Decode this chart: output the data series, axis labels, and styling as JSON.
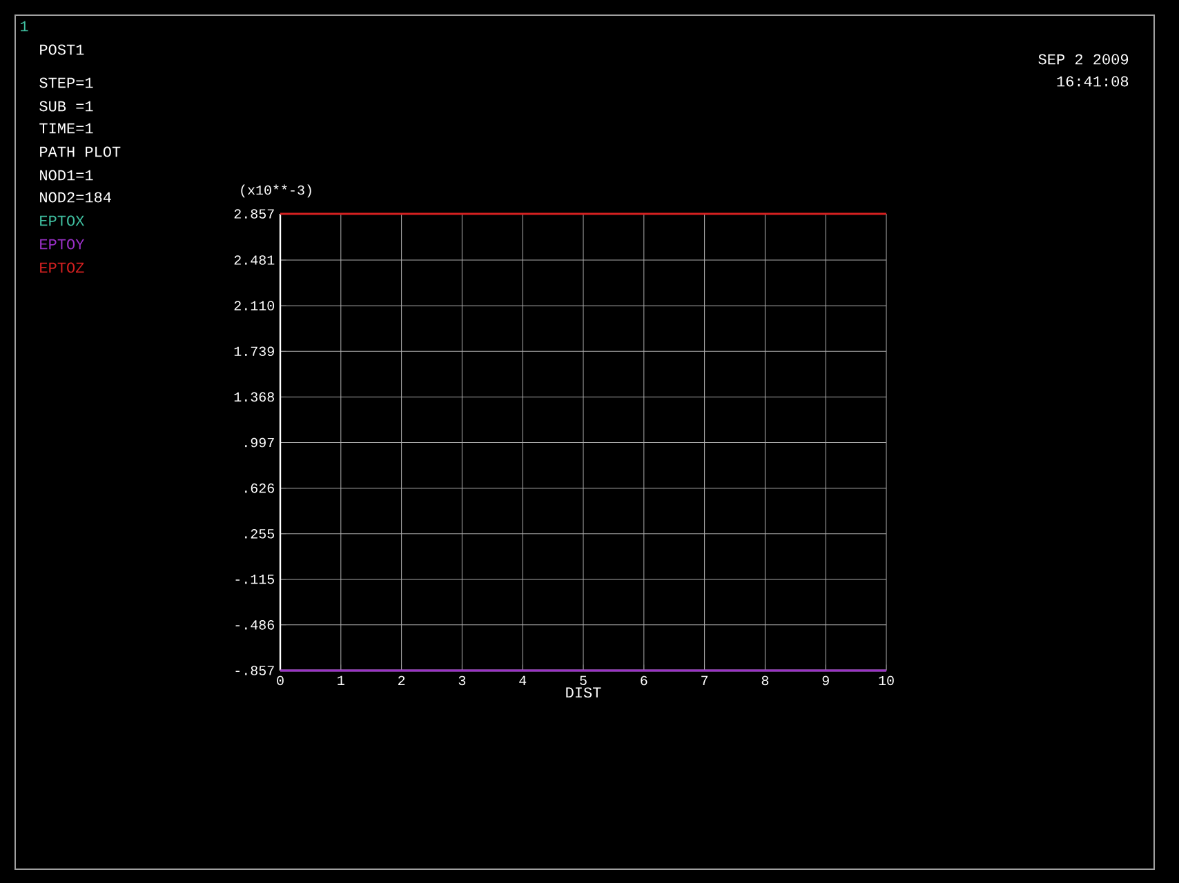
{
  "chart_data": {
    "type": "line",
    "x": [
      0,
      10
    ],
    "series": [
      {
        "name": "EPTOX",
        "color": "#3fbfa0",
        "values": [
          null,
          null
        ]
      },
      {
        "name": "EPTOY",
        "color": "#9b30c8",
        "values": [
          -0.857,
          -0.857
        ]
      },
      {
        "name": "EPTOZ",
        "color": "#d42020",
        "values": [
          2.857,
          2.857
        ]
      }
    ],
    "xlabel": "DIST",
    "ylabel": "(x10**-3)",
    "xlim": [
      0,
      10
    ],
    "xticks": [
      0,
      1,
      2,
      3,
      4,
      5,
      6,
      7,
      8,
      9,
      10
    ],
    "ylim": [
      -0.857,
      2.857
    ],
    "yticks": [
      {
        "value": 2.857,
        "label": "2.857"
      },
      {
        "value": 2.481,
        "label": "2.481"
      },
      {
        "value": 2.11,
        "label": "2.110"
      },
      {
        "value": 1.739,
        "label": "1.739"
      },
      {
        "value": 1.368,
        "label": "1.368"
      },
      {
        "value": 0.997,
        "label": ".997"
      },
      {
        "value": 0.626,
        "label": ".626"
      },
      {
        "value": 0.255,
        "label": ".255"
      },
      {
        "value": -0.115,
        "label": "-.115"
      },
      {
        "value": -0.486,
        "label": "-.486"
      },
      {
        "value": -0.857,
        "label": "-.857"
      }
    ],
    "grid": true,
    "legend": "left",
    "marker": "none",
    "line_style": "solid",
    "annotations": [
      "1",
      "POST1",
      "STEP=1",
      "SUB =1",
      "TIME=1",
      "PATH PLOT",
      "NOD1=1",
      "NOD2=184",
      "SEP 2 2009",
      "16:41:08"
    ]
  }
}
